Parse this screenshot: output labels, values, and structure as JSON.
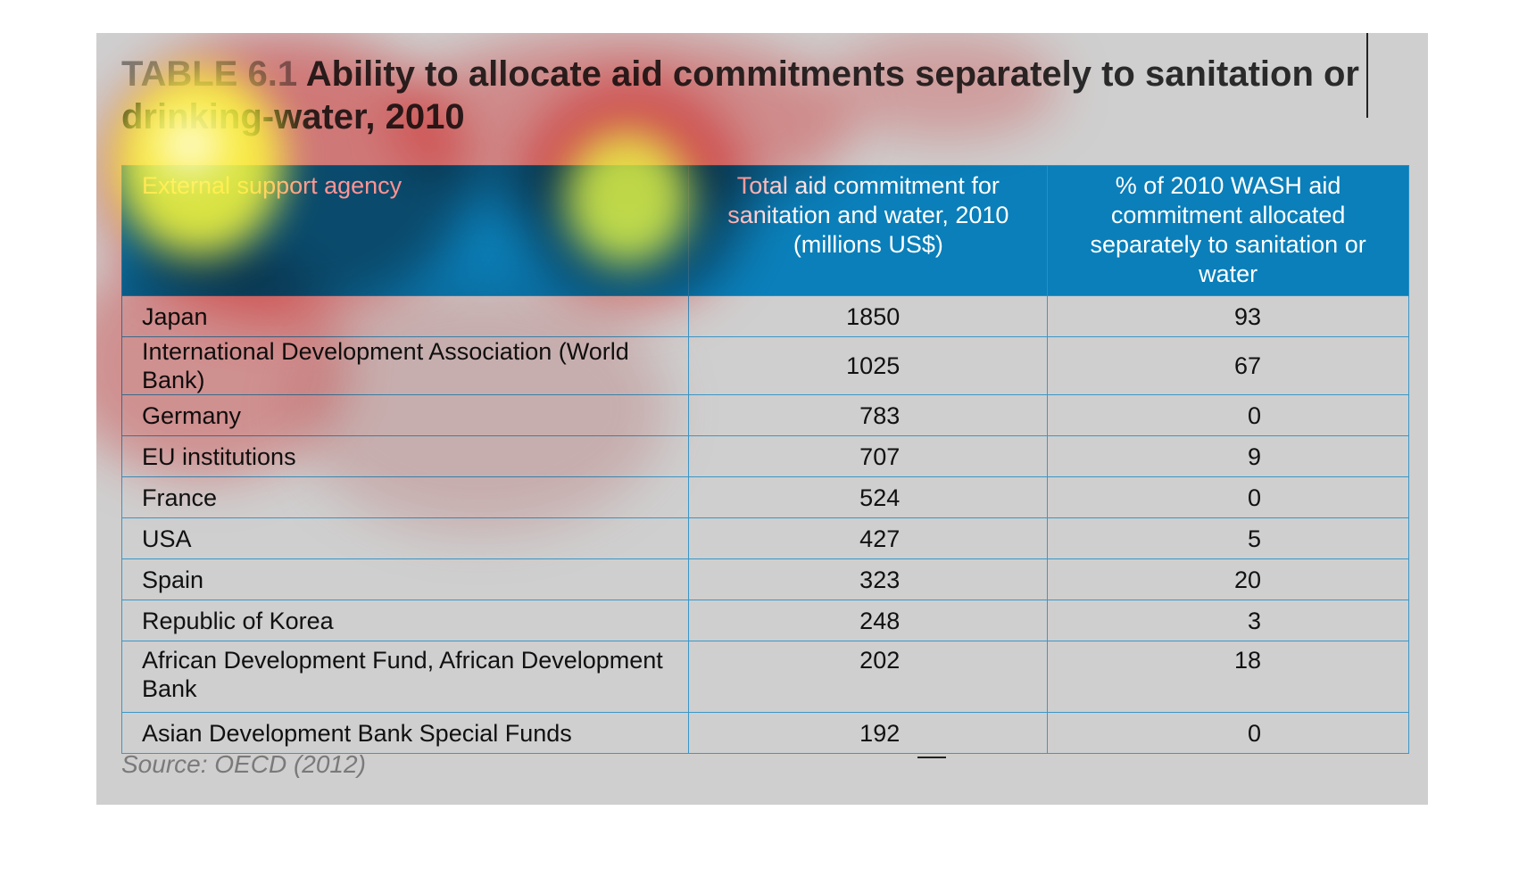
{
  "table": {
    "label": "TABLE 6.1",
    "title": "Ability to allocate aid commitments separately to sanitation or drinking-water, 2010",
    "headers": {
      "agency": "External support agency",
      "total": "Total aid commitment for sanitation and water, 2010 (millions US$)",
      "pct": "% of 2010 WASH aid commitment allocated separately to sanitation or water"
    },
    "rows": [
      {
        "agency": "Japan",
        "total": "1850",
        "pct": "93"
      },
      {
        "agency": "International Development Association (World Bank)",
        "total": "1025",
        "pct": "67"
      },
      {
        "agency": "Germany",
        "total": "783",
        "pct": "0"
      },
      {
        "agency": "EU institutions",
        "total": "707",
        "pct": "9"
      },
      {
        "agency": "France",
        "total": "524",
        "pct": "0"
      },
      {
        "agency": "USA",
        "total": "427",
        "pct": "5"
      },
      {
        "agency": "Spain",
        "total": "323",
        "pct": "20"
      },
      {
        "agency": "Republic of Korea",
        "total": "248",
        "pct": "3"
      },
      {
        "agency": "African Development Fund, African Development Bank",
        "total": "202",
        "pct": "18"
      },
      {
        "agency": "Asian Development Bank Special Funds",
        "total": "192",
        "pct": "0"
      }
    ],
    "source": "Source: OECD (2012)"
  },
  "overlay": {
    "type": "attention heatmap",
    "colors": {
      "hot": "#ffff33",
      "warm": "#ff3b3b",
      "panel": "#cfcfcf",
      "header": "#0a7fba"
    }
  }
}
